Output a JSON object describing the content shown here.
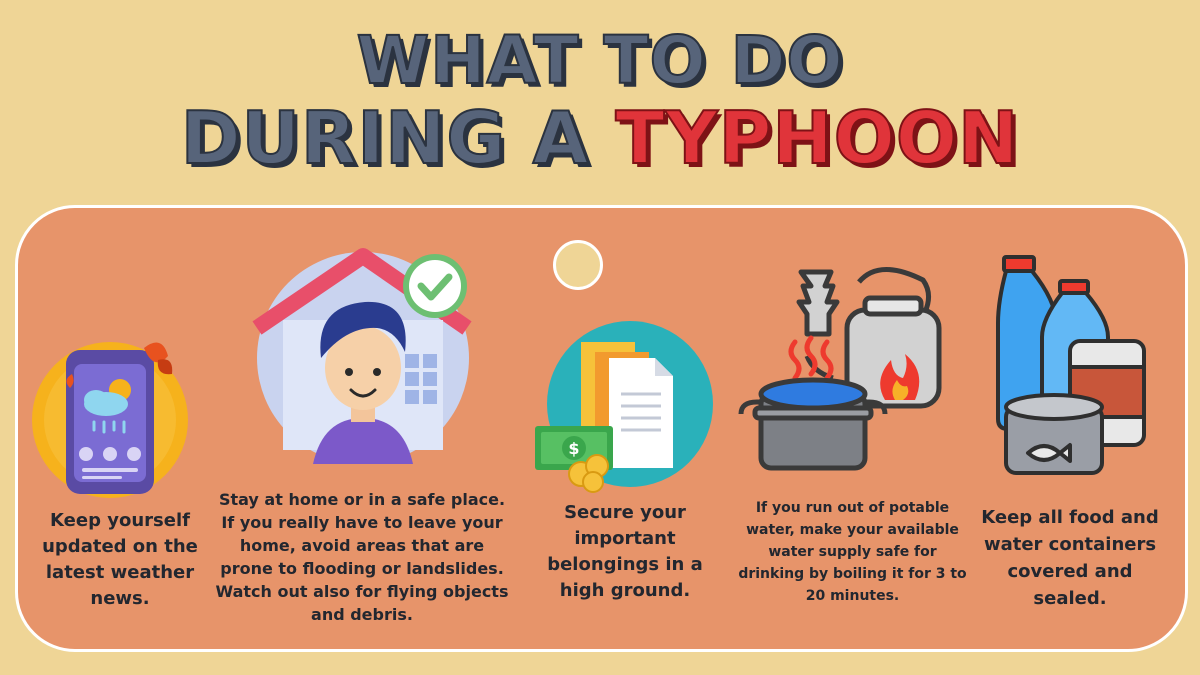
{
  "title": {
    "line1": "WHAT TO DO",
    "line2_prefix": "DURING A ",
    "line2_highlight": "TYPHOON"
  },
  "tips": [
    {
      "icon": "smartphone-weather-icon",
      "text": "Keep yourself updated on the latest weather news."
    },
    {
      "icon": "person-at-home-icon",
      "text": "Stay at home or in a safe place. If you really have to leave your home, avoid areas that are prone to flooding or landslides. Watch out also for flying objects and debris."
    },
    {
      "icon": "documents-money-icon",
      "text": "Secure your important belongings in a high ground."
    },
    {
      "icon": "boiling-water-kettle-icon",
      "text": "If you run out of potable water, make your available water supply safe for drinking by boiling it for 3 to 20 minutes."
    },
    {
      "icon": "food-water-containers-icon",
      "text": "Keep all food and water containers covered and sealed."
    }
  ],
  "money_symbol": "$",
  "colors": {
    "background": "#efd596",
    "card": "#e7946a",
    "title_gray": "#57647a",
    "title_red": "#e0343a"
  }
}
